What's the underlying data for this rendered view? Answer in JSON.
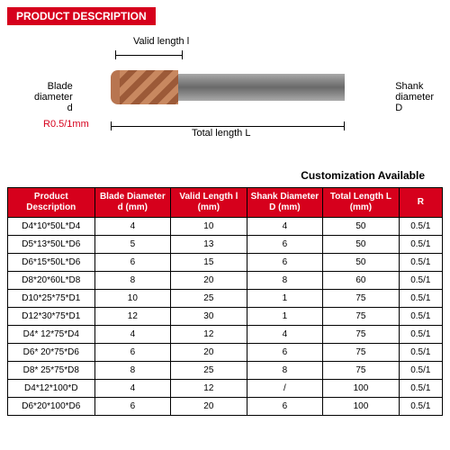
{
  "header": "PRODUCT DESCRIPTION",
  "diagram": {
    "valid_length": "Valid length  l",
    "blade_diameter": "Blade\ndiameter\nd",
    "shank_diameter": "Shank\ndiameter\nD",
    "total_length": "Total length  L",
    "radius": "R0.5/1mm"
  },
  "customization": "Customization Available",
  "table": {
    "headers": [
      "Product Description",
      "Blade Diameter d (mm)",
      "Valid Length l (mm)",
      "Shank Diameter D (mm)",
      "Total  Length L (mm)",
      "R"
    ],
    "rows": [
      [
        "D4*10*50L*D4",
        "4",
        "10",
        "4",
        "50",
        "0.5/1"
      ],
      [
        "D5*13*50L*D6",
        "5",
        "13",
        "6",
        "50",
        "0.5/1"
      ],
      [
        "D6*15*50L*D6",
        "6",
        "15",
        "6",
        "50",
        "0.5/1"
      ],
      [
        "D8*20*60L*D8",
        "8",
        "20",
        "8",
        "60",
        "0.5/1"
      ],
      [
        "D10*25*75*D1",
        "10",
        "25",
        "1",
        "75",
        "0.5/1"
      ],
      [
        "D12*30*75*D1",
        "12",
        "30",
        "1",
        "75",
        "0.5/1"
      ],
      [
        "D4* 12*75*D4",
        "4",
        "12",
        "4",
        "75",
        "0.5/1"
      ],
      [
        "D6* 20*75*D6",
        "6",
        "20",
        "6",
        "75",
        "0.5/1"
      ],
      [
        "D8* 25*75*D8",
        "8",
        "25",
        "8",
        "75",
        "0.5/1"
      ],
      [
        "D4*12*100*D",
        "4",
        "12",
        "/",
        "100",
        "0.5/1"
      ],
      [
        "D6*20*100*D6",
        "6",
        "20",
        "6",
        "100",
        "0.5/1"
      ]
    ]
  }
}
